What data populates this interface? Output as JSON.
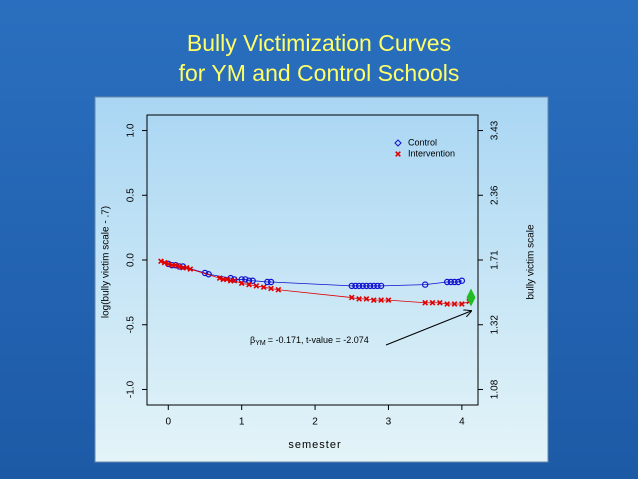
{
  "chart_data": {
    "type": "scatter",
    "title": [
      "Bully Victimization Curves",
      "for  YM and Control Schools"
    ],
    "x_label": "semester",
    "y_label": "log(bully victim scale - .7)",
    "y2_label": "bully victim scale",
    "xlim": [
      -0.29,
      4.22
    ],
    "ylim": [
      -1.12,
      1.12
    ],
    "xticks": [
      0,
      1,
      2,
      3,
      4
    ],
    "yticks": [
      {
        "value": 1.0,
        "label": "1.0"
      },
      0.5,
      {
        "value": 0.0,
        "label": "0.0"
      },
      -0.5,
      {
        "value": -1.0,
        "label": "-1.0"
      }
    ],
    "y2ticks": [
      3.43,
      2.36,
      1.71,
      1.32,
      1.08
    ],
    "legend": "top-right",
    "line": true,
    "series": [
      {
        "name": "Control",
        "color": "#1010d0",
        "marker": "circle",
        "x": [
          0,
          0.05,
          0.1,
          0.15,
          0.2,
          0.5,
          0.55,
          0.85,
          0.9,
          1.0,
          1.05,
          1.1,
          1.15,
          1.35,
          1.4,
          2.5,
          2.55,
          2.6,
          2.65,
          2.7,
          2.75,
          2.8,
          2.85,
          2.9,
          3.5,
          3.8,
          3.85,
          3.9,
          3.95,
          4.0
        ],
        "values": [
          -0.03,
          -0.04,
          -0.04,
          -0.05,
          -0.05,
          -0.1,
          -0.11,
          -0.14,
          -0.15,
          -0.15,
          -0.15,
          -0.16,
          -0.16,
          -0.17,
          -0.17,
          -0.2,
          -0.2,
          -0.2,
          -0.2,
          -0.2,
          -0.2,
          -0.2,
          -0.2,
          -0.2,
          -0.19,
          -0.17,
          -0.17,
          -0.17,
          -0.17,
          -0.16
        ]
      },
      {
        "name": "Intervention",
        "color": "#e00000",
        "marker": "cross",
        "x": [
          -0.1,
          -0.05,
          0,
          0.05,
          0.1,
          0.15,
          0.2,
          0.25,
          0.3,
          0.7,
          0.75,
          0.8,
          0.85,
          0.9,
          1.0,
          1.1,
          1.2,
          1.3,
          1.4,
          1.5,
          2.5,
          2.6,
          2.7,
          2.8,
          2.9,
          3.0,
          3.5,
          3.6,
          3.7,
          3.8,
          3.9,
          4.0,
          4.1
        ],
        "values": [
          -0.01,
          -0.02,
          -0.03,
          -0.04,
          -0.04,
          -0.05,
          -0.06,
          -0.06,
          -0.07,
          -0.14,
          -0.15,
          -0.15,
          -0.16,
          -0.16,
          -0.18,
          -0.19,
          -0.2,
          -0.21,
          -0.22,
          -0.23,
          -0.29,
          -0.3,
          -0.3,
          -0.31,
          -0.31,
          -0.31,
          -0.33,
          -0.33,
          -0.33,
          -0.34,
          -0.34,
          -0.34,
          -0.32
        ]
      }
    ],
    "annotation": {
      "symbol": "β",
      "subscript": "YM",
      "text": "= -0.171,  t-value = -2.074"
    }
  }
}
